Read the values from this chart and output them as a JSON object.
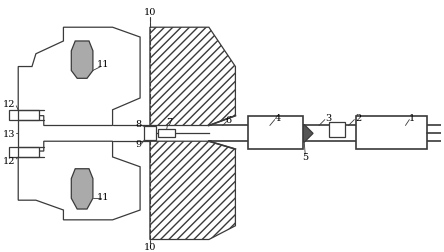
{
  "fig_width": 4.44,
  "fig_height": 2.53,
  "dpi": 100,
  "bg_color": "#ffffff",
  "line_color": "#3a3a3a",
  "lw": 0.9,
  "lw_thick": 1.2,
  "label_fs": 7.0
}
